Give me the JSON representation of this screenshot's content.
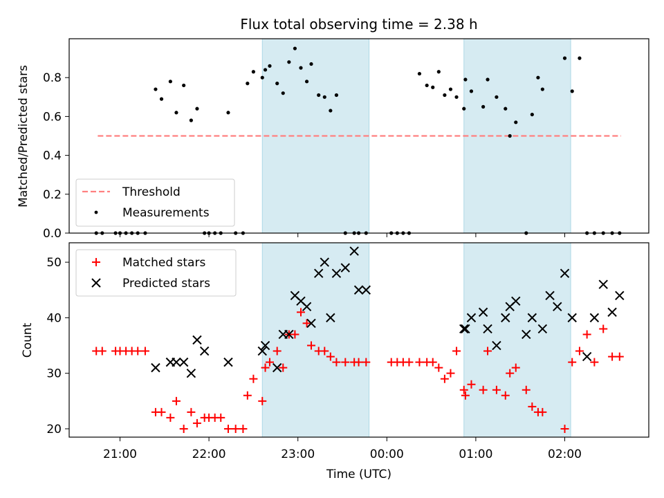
{
  "title": "Flux total observing time = 2.38 h",
  "xlabel": "Time (UTC)",
  "x_ticks": [
    "21:00",
    "22:00",
    "23:00",
    "00:00",
    "01:00",
    "02:00"
  ],
  "colors": {
    "threshold": "#ff8080",
    "measurement": "#000000",
    "matched": "#ff0000",
    "predicted": "#000000",
    "shade": "#add8e6"
  },
  "chart_data": [
    {
      "type": "scatter",
      "ylabel": "Matched/Predicted stars",
      "ylim": [
        0,
        1.0
      ],
      "yticks": [
        "0.0",
        "0.2",
        "0.4",
        "0.6",
        "0.8"
      ],
      "ytick_values": [
        0,
        0.2,
        0.4,
        0.6,
        0.8
      ],
      "legend": {
        "placement": "lower-left",
        "entries": [
          "Threshold",
          "Measurements"
        ]
      },
      "threshold": {
        "name": "Threshold",
        "y": 0.5,
        "x_range": [
          "20:45",
          "02:38"
        ]
      },
      "shaded_intervals": [
        [
          "22:36",
          "23:48"
        ],
        [
          "00:52",
          "02:04"
        ]
      ],
      "series": [
        {
          "name": "Measurements",
          "x": [
            "20:44",
            "20:48",
            "20:57",
            "21:00",
            "21:04",
            "21:08",
            "21:12",
            "21:17",
            "21:24",
            "21:28",
            "21:34",
            "21:38",
            "21:43",
            "21:48",
            "21:52",
            "21:57",
            "22:00",
            "22:04",
            "22:08",
            "22:13",
            "22:18",
            "22:23",
            "22:26",
            "22:30",
            "22:36",
            "22:38",
            "22:41",
            "22:46",
            "22:50",
            "22:54",
            "22:58",
            "23:02",
            "23:06",
            "23:09",
            "23:14",
            "23:18",
            "23:22",
            "23:26",
            "23:32",
            "23:38",
            "23:41",
            "23:46",
            "00:03",
            "00:07",
            "00:11",
            "00:15",
            "00:22",
            "00:27",
            "00:31",
            "00:35",
            "00:39",
            "00:43",
            "00:47",
            "00:52",
            "00:53",
            "00:57",
            "01:05",
            "01:08",
            "01:14",
            "01:20",
            "01:23",
            "01:27",
            "01:34",
            "01:38",
            "01:42",
            "01:45",
            "02:00",
            "02:05",
            "02:10",
            "02:15",
            "02:20",
            "02:26",
            "02:32",
            "02:37"
          ],
          "y": [
            0,
            0,
            0,
            0,
            0,
            0,
            0,
            0,
            0.74,
            0.69,
            0.78,
            0.62,
            0.76,
            0.58,
            0.64,
            0,
            0,
            0,
            0,
            0.62,
            0,
            0,
            0.77,
            0.83,
            0.8,
            0.84,
            0.86,
            0.77,
            0.72,
            0.88,
            0.95,
            0.85,
            0.78,
            0.87,
            0.71,
            0.7,
            0.63,
            0.71,
            0,
            0,
            0,
            0,
            0,
            0,
            0,
            0,
            0.82,
            0.76,
            0.75,
            0.83,
            0.71,
            0.74,
            0.7,
            0.64,
            0.79,
            0.73,
            0.65,
            0.79,
            0.7,
            0.64,
            0.5,
            0.57,
            0,
            0.61,
            0.8,
            0.74,
            0.9,
            0.73,
            0.9,
            0,
            0,
            0,
            0,
            0
          ]
        }
      ]
    },
    {
      "type": "scatter",
      "ylabel": "Count",
      "ylim": [
        18.5,
        53.5
      ],
      "yticks": [
        "20",
        "30",
        "40",
        "50"
      ],
      "ytick_values": [
        20,
        30,
        40,
        50
      ],
      "legend": {
        "placement": "upper-left",
        "entries": [
          "Matched stars",
          "Predicted stars"
        ]
      },
      "shaded_intervals": [
        [
          "22:36",
          "23:48"
        ],
        [
          "00:52",
          "02:04"
        ]
      ],
      "series": [
        {
          "name": "Matched stars",
          "x": [
            "20:44",
            "20:48",
            "20:57",
            "21:00",
            "21:04",
            "21:08",
            "21:12",
            "21:17",
            "21:24",
            "21:28",
            "21:34",
            "21:38",
            "21:43",
            "21:48",
            "21:52",
            "21:57",
            "22:00",
            "22:04",
            "22:08",
            "22:13",
            "22:18",
            "22:23",
            "22:26",
            "22:30",
            "22:36",
            "22:38",
            "22:41",
            "22:46",
            "22:50",
            "22:54",
            "22:58",
            "23:02",
            "23:06",
            "23:09",
            "23:14",
            "23:18",
            "23:22",
            "23:26",
            "23:32",
            "23:38",
            "23:41",
            "23:46",
            "00:03",
            "00:07",
            "00:11",
            "00:15",
            "00:22",
            "00:27",
            "00:31",
            "00:35",
            "00:39",
            "00:43",
            "00:47",
            "00:52",
            "00:53",
            "00:57",
            "01:05",
            "01:08",
            "01:14",
            "01:20",
            "01:23",
            "01:27",
            "01:34",
            "01:38",
            "01:42",
            "01:45",
            "02:00",
            "02:05",
            "02:10",
            "02:15",
            "02:20",
            "02:26",
            "02:32",
            "02:37"
          ],
          "y": [
            34,
            34,
            34,
            34,
            34,
            34,
            34,
            34,
            23,
            23,
            22,
            25,
            20,
            23,
            21,
            22,
            22,
            22,
            22,
            20,
            20,
            20,
            26,
            29,
            25,
            31,
            32,
            34,
            31,
            37,
            37,
            41,
            39,
            35,
            34,
            34,
            33,
            32,
            32,
            32,
            32,
            32,
            32,
            32,
            32,
            32,
            32,
            32,
            32,
            31,
            29,
            30,
            34,
            27,
            26,
            28,
            27,
            34,
            27,
            26,
            30,
            31,
            27,
            24,
            23,
            23,
            20,
            32,
            34,
            37,
            32,
            38,
            33,
            33
          ]
        },
        {
          "name": "Predicted stars",
          "x": [
            "21:24",
            "21:34",
            "21:38",
            "21:43",
            "21:48",
            "21:52",
            "21:57",
            "22:13",
            "22:36",
            "22:38",
            "22:46",
            "22:50",
            "22:54",
            "22:58",
            "23:02",
            "23:06",
            "23:09",
            "23:14",
            "23:18",
            "23:22",
            "23:26",
            "23:32",
            "23:38",
            "23:41",
            "23:46",
            "00:52",
            "00:53",
            "00:57",
            "01:05",
            "01:08",
            "01:14",
            "01:20",
            "01:23",
            "01:27",
            "01:34",
            "01:38",
            "01:45",
            "01:50",
            "01:55",
            "02:00",
            "02:05",
            "02:15",
            "02:20",
            "02:26",
            "02:32",
            "02:37"
          ],
          "y": [
            31,
            32,
            32,
            32,
            30,
            36,
            34,
            32,
            34,
            35,
            31,
            37,
            37,
            44,
            43,
            42,
            39,
            48,
            50,
            40,
            48,
            49,
            52,
            45,
            45,
            38,
            38,
            40,
            41,
            38,
            35,
            40,
            42,
            43,
            37,
            40,
            38,
            44,
            42,
            48,
            40,
            33,
            40,
            46,
            41,
            44
          ]
        }
      ]
    }
  ]
}
